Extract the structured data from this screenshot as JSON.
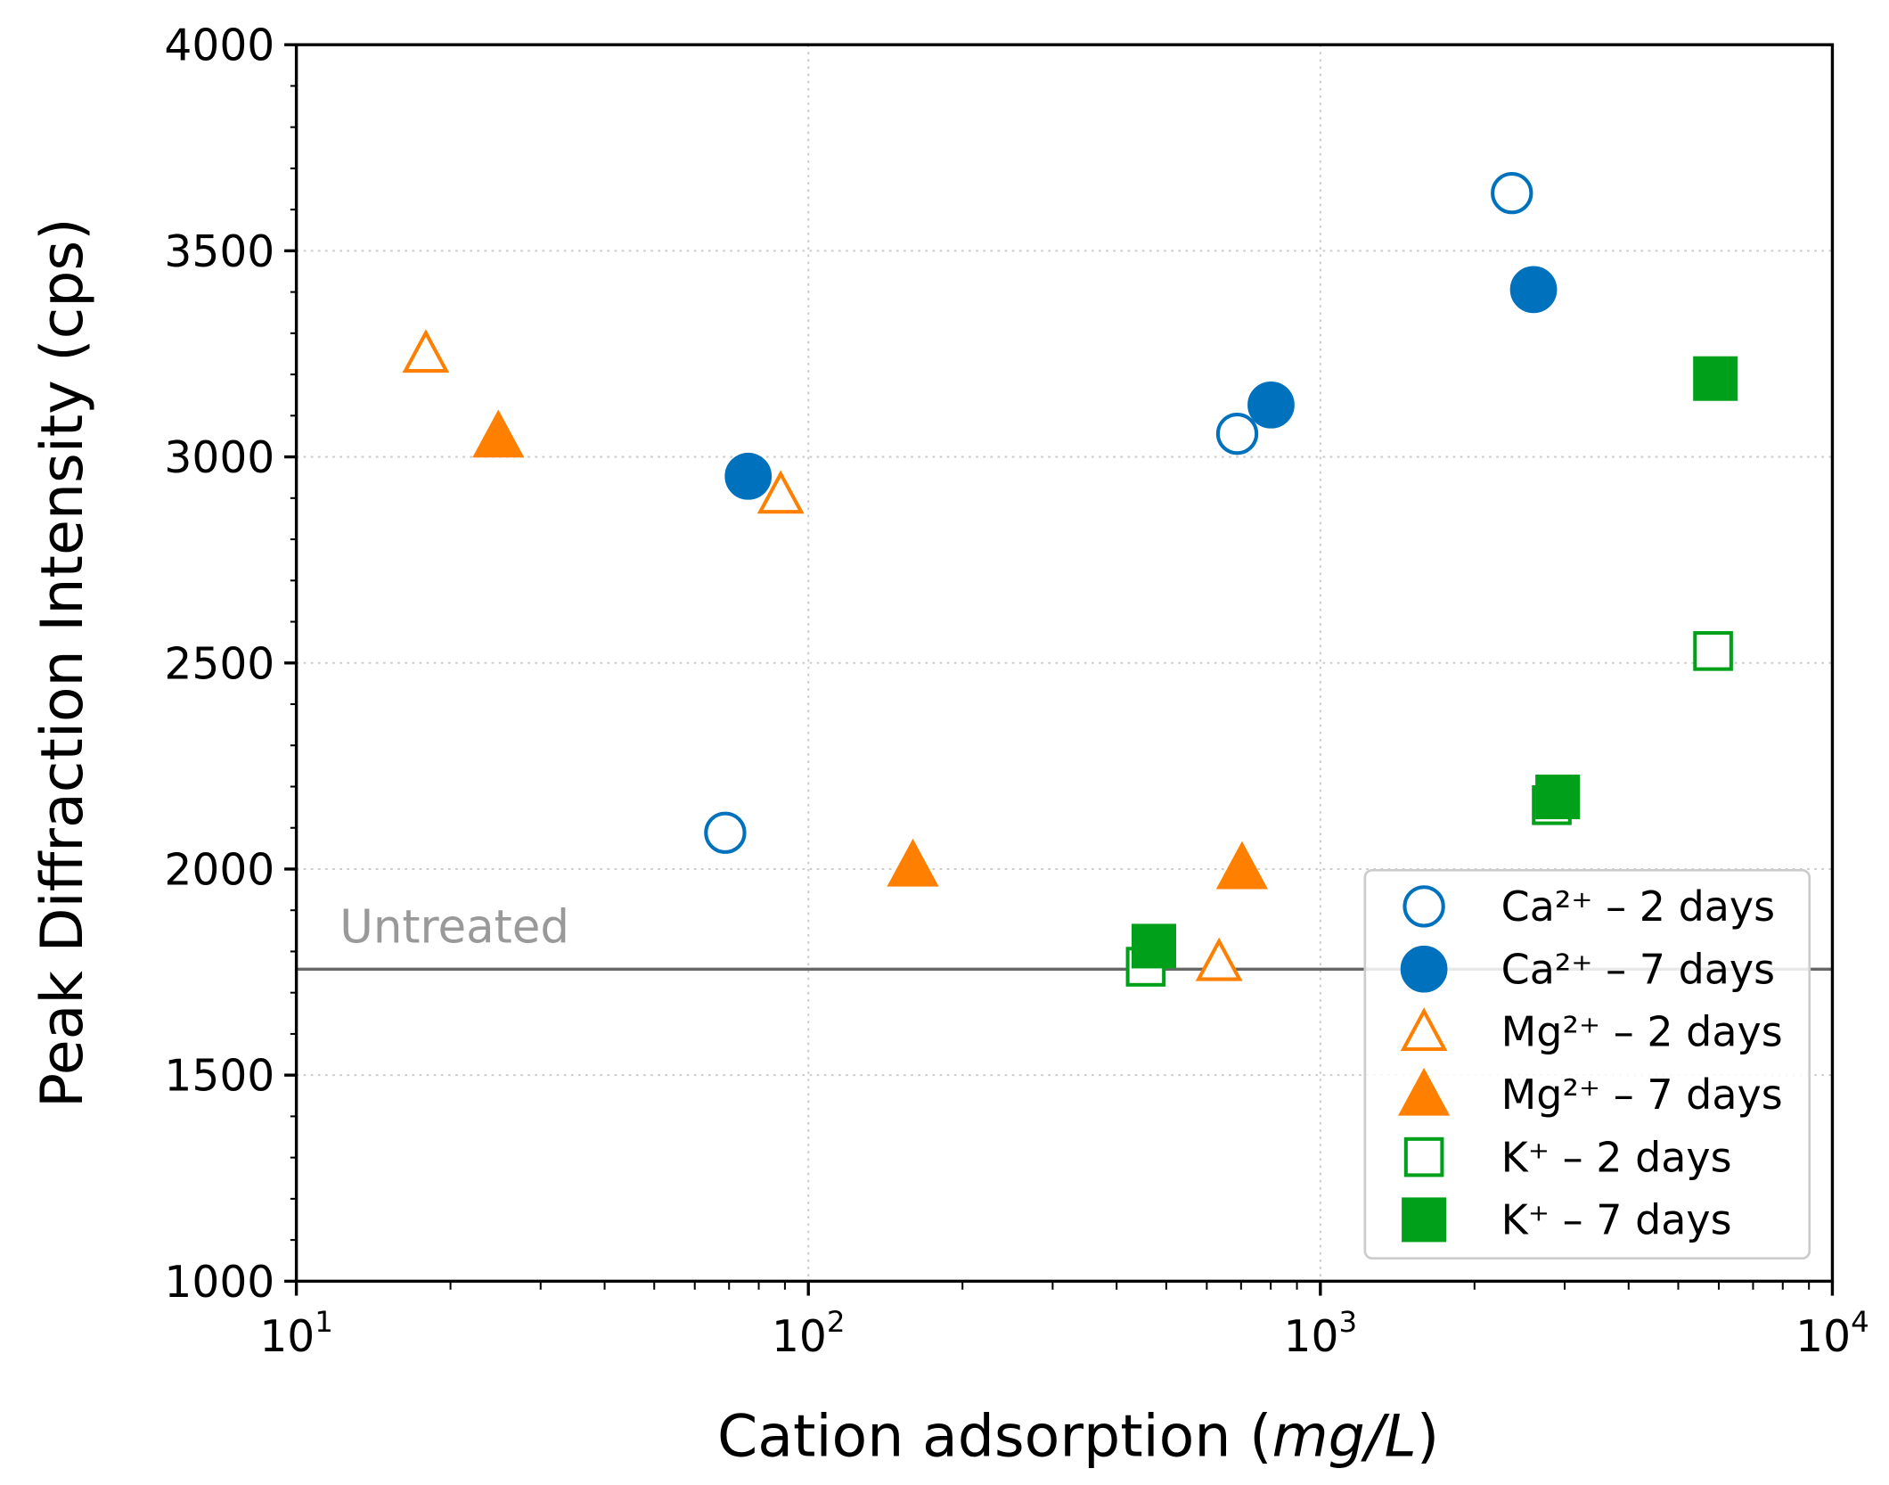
{
  "chart_data": {
    "type": "scatter",
    "title": "",
    "xlabel": "Cation adsorption",
    "xlabel_unit": "mg/L",
    "ylabel": "Peak Diffraction Intensity (cps)",
    "xscale": "log",
    "xlim": [
      10,
      10000
    ],
    "ylim": [
      1000,
      4000
    ],
    "xticks": [
      {
        "base": "10",
        "exp": "1",
        "value": 10
      },
      {
        "base": "10",
        "exp": "2",
        "value": 100
      },
      {
        "base": "10",
        "exp": "3",
        "value": 1000
      },
      {
        "base": "10",
        "exp": "4",
        "value": 10000
      }
    ],
    "yticks": [
      "1000",
      "1500",
      "2000",
      "2500",
      "3000",
      "3500",
      "4000"
    ],
    "grid": true,
    "legend_position": "lower-right",
    "reference_line": {
      "label": "Untreated",
      "y": 1757,
      "color": "#666666"
    },
    "series": [
      {
        "name": "Ca²⁺ – 2 days",
        "marker": "circle",
        "filled": false,
        "color": "#0072BD",
        "points": [
          [
            68.8,
            2088
          ],
          [
            688,
            3056
          ],
          [
            2366,
            3640
          ]
        ]
      },
      {
        "name": "Ca²⁺ – 7 days",
        "marker": "circle",
        "filled": true,
        "color": "#0072BD",
        "points": [
          [
            76.3,
            2953
          ],
          [
            801,
            3126
          ],
          [
            2608,
            3406
          ]
        ]
      },
      {
        "name": "Mg²⁺ – 2 days",
        "marker": "triangle",
        "filled": false,
        "color": "#FF7F00",
        "points": [
          [
            17.9,
            3251
          ],
          [
            88.3,
            2909
          ],
          [
            634,
            1775
          ]
        ]
      },
      {
        "name": "Mg²⁺ – 7 days",
        "marker": "triangle",
        "filled": true,
        "color": "#FF7F00",
        "points": [
          [
            24.8,
            3050
          ],
          [
            160,
            2009
          ],
          [
            703,
            2003
          ]
        ]
      },
      {
        "name": "K⁺ – 2 days",
        "marker": "square",
        "filled": false,
        "color": "#00A01A",
        "points": [
          [
            456,
            1763
          ],
          [
            2831,
            2155
          ],
          [
            5848,
            2529
          ]
        ]
      },
      {
        "name": "K⁺ – 7 days",
        "marker": "square",
        "filled": true,
        "color": "#00A01A",
        "points": [
          [
            473,
            1813
          ],
          [
            2907,
            2175
          ],
          [
            5910,
            3190
          ]
        ]
      }
    ]
  }
}
